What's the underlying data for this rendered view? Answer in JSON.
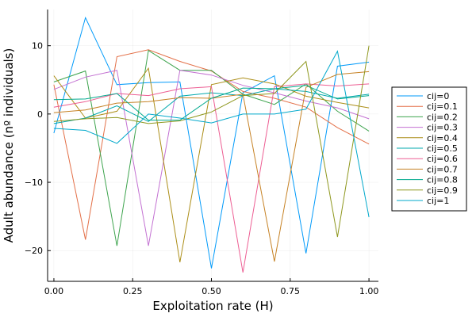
{
  "chart_data": {
    "type": "line",
    "xlabel": "Exploitation rate (H)",
    "ylabel": "Adult abundance (nº individuals)",
    "xlim": [
      -0.02,
      1.03
    ],
    "ylim": [
      -24.5,
      15.3
    ],
    "x_ticks": [
      0.0,
      0.25,
      0.5,
      0.75,
      1.0
    ],
    "x_tick_labels": [
      "0.00",
      "0.25",
      "0.50",
      "0.75",
      "1.00"
    ],
    "y_ticks": [
      -20,
      -10,
      0,
      10
    ],
    "y_tick_labels": [
      "−20",
      "−10",
      "0",
      "10"
    ],
    "grid": true,
    "legend_position": "right",
    "x": [
      0.0,
      0.1,
      0.2,
      0.3,
      0.4,
      0.5,
      0.6,
      0.7,
      0.8,
      0.9,
      1.0
    ],
    "series": [
      {
        "name": "cij=0",
        "color": "#009AFA",
        "values": [
          -2.8,
          14.1,
          4.3,
          4.6,
          4.7,
          -22.6,
          3.1,
          5.6,
          -20.4,
          7.0,
          7.6
        ]
      },
      {
        "name": "cij=0.1",
        "color": "#E36F47",
        "values": [
          4.3,
          -18.4,
          8.4,
          9.4,
          7.7,
          6.3,
          3.3,
          2.3,
          1.0,
          -2.0,
          -4.4
        ]
      },
      {
        "name": "cij=0.2",
        "color": "#3EA44E",
        "values": [
          4.7,
          6.3,
          -19.3,
          9.3,
          6.4,
          6.4,
          2.9,
          1.4,
          4.4,
          0.4,
          -2.5
        ]
      },
      {
        "name": "cij=0.3",
        "color": "#C371D2",
        "values": [
          3.6,
          5.4,
          6.4,
          -19.3,
          6.4,
          5.7,
          4.2,
          3.1,
          1.9,
          0.9,
          -0.7
        ]
      },
      {
        "name": "cij=0.4",
        "color": "#AC8E18",
        "values": [
          5.6,
          -0.6,
          0.4,
          6.7,
          -21.7,
          4.3,
          5.3,
          4.4,
          2.6,
          1.7,
          0.9
        ]
      },
      {
        "name": "cij=0.5",
        "color": "#00A9AD",
        "values": [
          -1.4,
          -0.6,
          1.2,
          -1.1,
          2.6,
          3.1,
          2.7,
          3.7,
          3.3,
          2.3,
          2.9
        ]
      },
      {
        "name": "cij=0.6",
        "color": "#ED5E93",
        "values": [
          1.0,
          1.8,
          3.0,
          2.7,
          3.7,
          4.0,
          -23.2,
          4.0,
          4.4,
          4.1,
          4.4
        ]
      },
      {
        "name": "cij=0.7",
        "color": "#C68225",
        "values": [
          0.2,
          0.6,
          1.6,
          1.8,
          2.4,
          2.3,
          2.9,
          -21.6,
          3.9,
          5.8,
          6.2
        ]
      },
      {
        "name": "cij=0.8",
        "color": "#00A98D",
        "values": [
          2.1,
          2.2,
          3.0,
          -0.9,
          -0.9,
          2.3,
          3.8,
          3.7,
          4.2,
          2.2,
          2.7
        ]
      },
      {
        "name": "cij=0.9",
        "color": "#8E971E",
        "values": [
          -1.1,
          -0.7,
          -0.5,
          -1.4,
          -1.0,
          0.3,
          2.7,
          3.0,
          7.7,
          -18.0,
          10.0
        ]
      },
      {
        "name": "cij=1",
        "color": "#00A8CB",
        "values": [
          -2.1,
          -2.4,
          -4.3,
          0.0,
          -0.6,
          -1.3,
          0.0,
          0.0,
          0.7,
          9.2,
          -15.1
        ]
      }
    ]
  }
}
